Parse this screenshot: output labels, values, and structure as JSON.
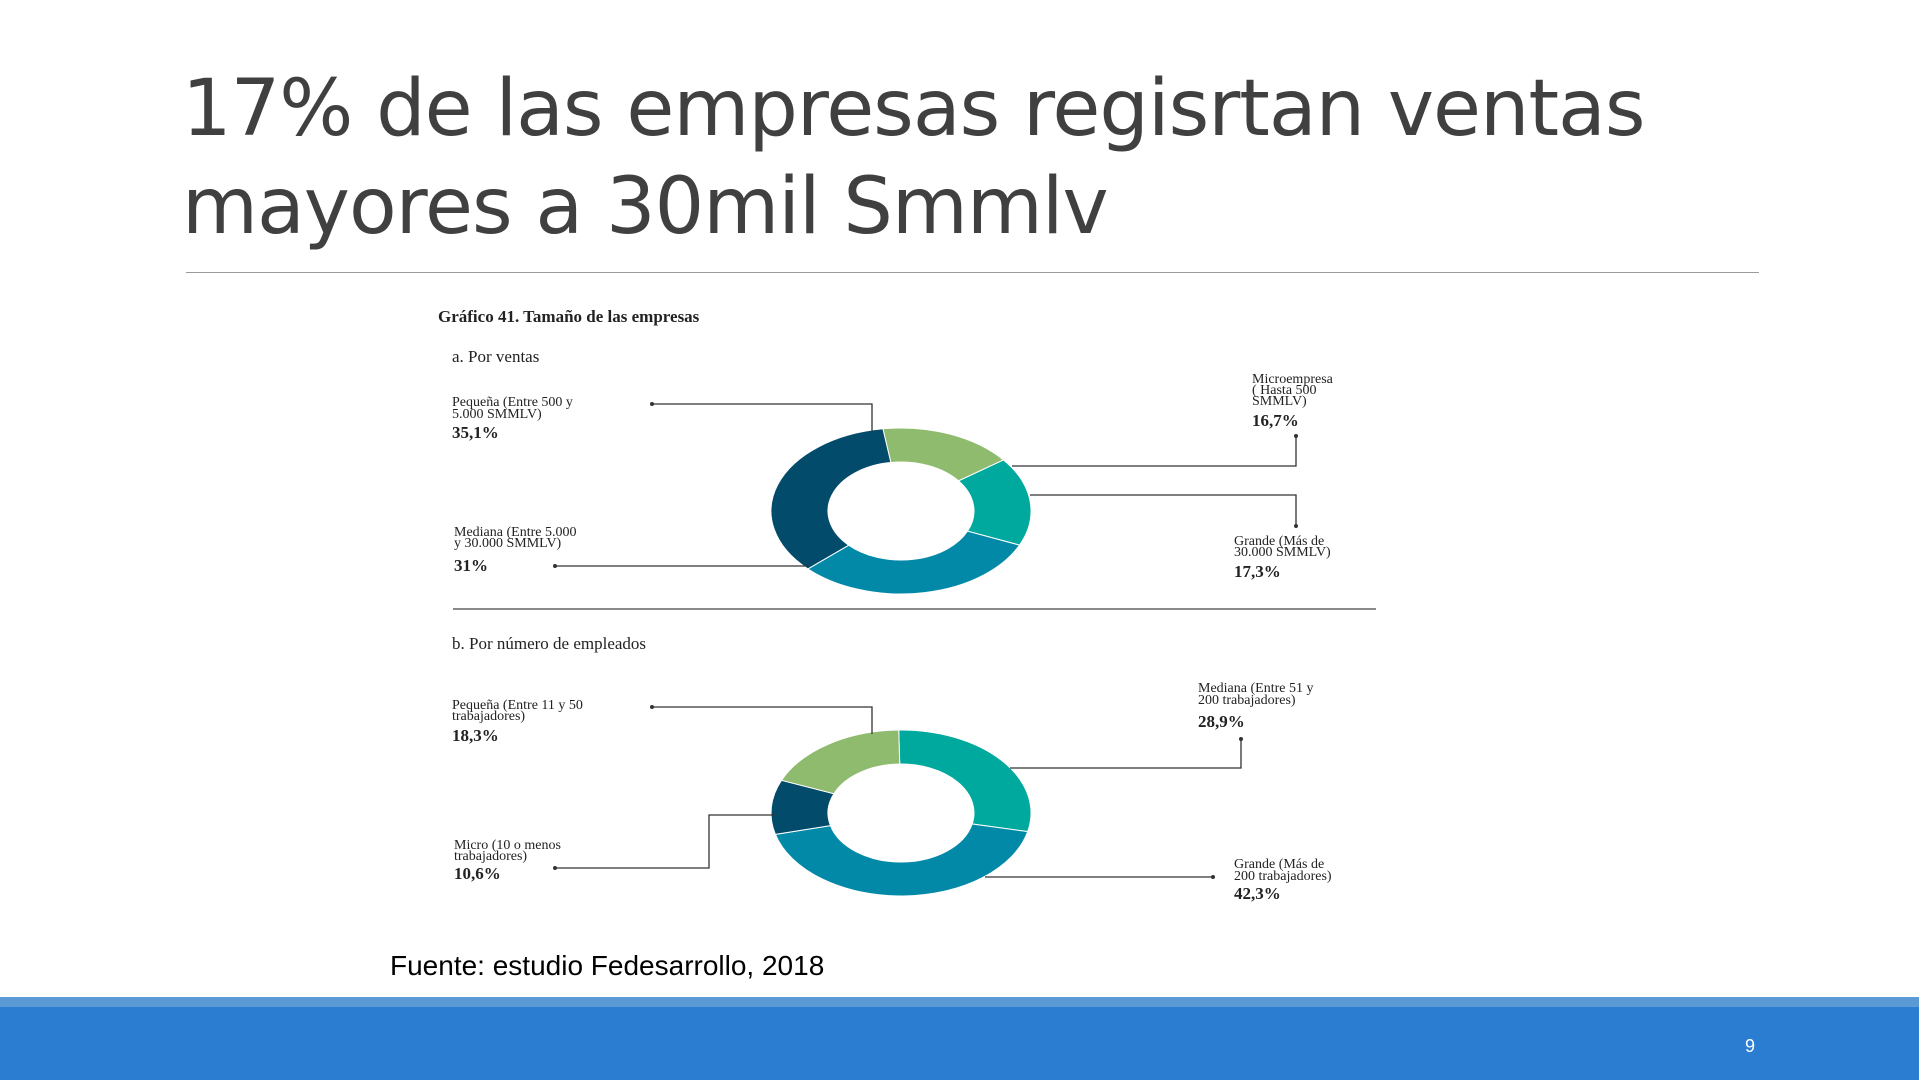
{
  "slide": {
    "title": "17% de las empresas regisrtan ventas mayores a 30mil Smmlv",
    "source": "Fuente: estudio Fedesarrollo, 2018",
    "page_number": "9"
  },
  "colors": {
    "light_green": "#8fbb6e",
    "teal": "#00a99d",
    "blue": "#0389a8",
    "dark_navy": "#034b6b",
    "footer": "#2a7dd1"
  },
  "chart_data": {
    "title": "Gráfico 41. Tamaño de las empresas",
    "charts": [
      {
        "type": "pie",
        "subtitle": "a. Por ventas",
        "slices": [
          {
            "key": "micro",
            "label_lines": [
              "Microempresa",
              "( Hasta 500",
              "SMMLV)"
            ],
            "value": 16.7,
            "value_label": "16,7%",
            "color": "#8fbb6e"
          },
          {
            "key": "grande",
            "label_lines": [
              "Grande (Más de",
              "30.000 SMMLV)"
            ],
            "value": 17.3,
            "value_label": "17,3%",
            "color": "#00a99d"
          },
          {
            "key": "mediana",
            "label_lines": [
              "Mediana (Entre 5.000",
              "y 30.000 SMMLV)"
            ],
            "value": 31,
            "value_label": "31%",
            "color": "#0389a8"
          },
          {
            "key": "pequena",
            "label_lines": [
              "Pequeña (Entre 500 y",
              "5.000 SMMLV)"
            ],
            "value": 35.1,
            "value_label": "35,1%",
            "color": "#034b6b"
          }
        ]
      },
      {
        "type": "pie",
        "subtitle": "b. Por número de empleados",
        "slices": [
          {
            "key": "mediana",
            "label_lines": [
              "Mediana (Entre 51 y",
              "200 trabajadores)"
            ],
            "value": 28.9,
            "value_label": "28,9%",
            "color": "#00a99d"
          },
          {
            "key": "grande",
            "label_lines": [
              "Grande (Más de",
              "200 trabajadores)"
            ],
            "value": 42.3,
            "value_label": "42,3%",
            "color": "#0389a8"
          },
          {
            "key": "micro",
            "label_lines": [
              "Micro (10 o menos",
              "trabajadores)"
            ],
            "value": 10.6,
            "value_label": "10,6%",
            "color": "#034b6b"
          },
          {
            "key": "pequena",
            "label_lines": [
              "Pequeña (Entre 11 y 50",
              "trabajadores)"
            ],
            "value": 18.3,
            "value_label": "18,3%",
            "color": "#8fbb6e"
          }
        ]
      }
    ]
  }
}
